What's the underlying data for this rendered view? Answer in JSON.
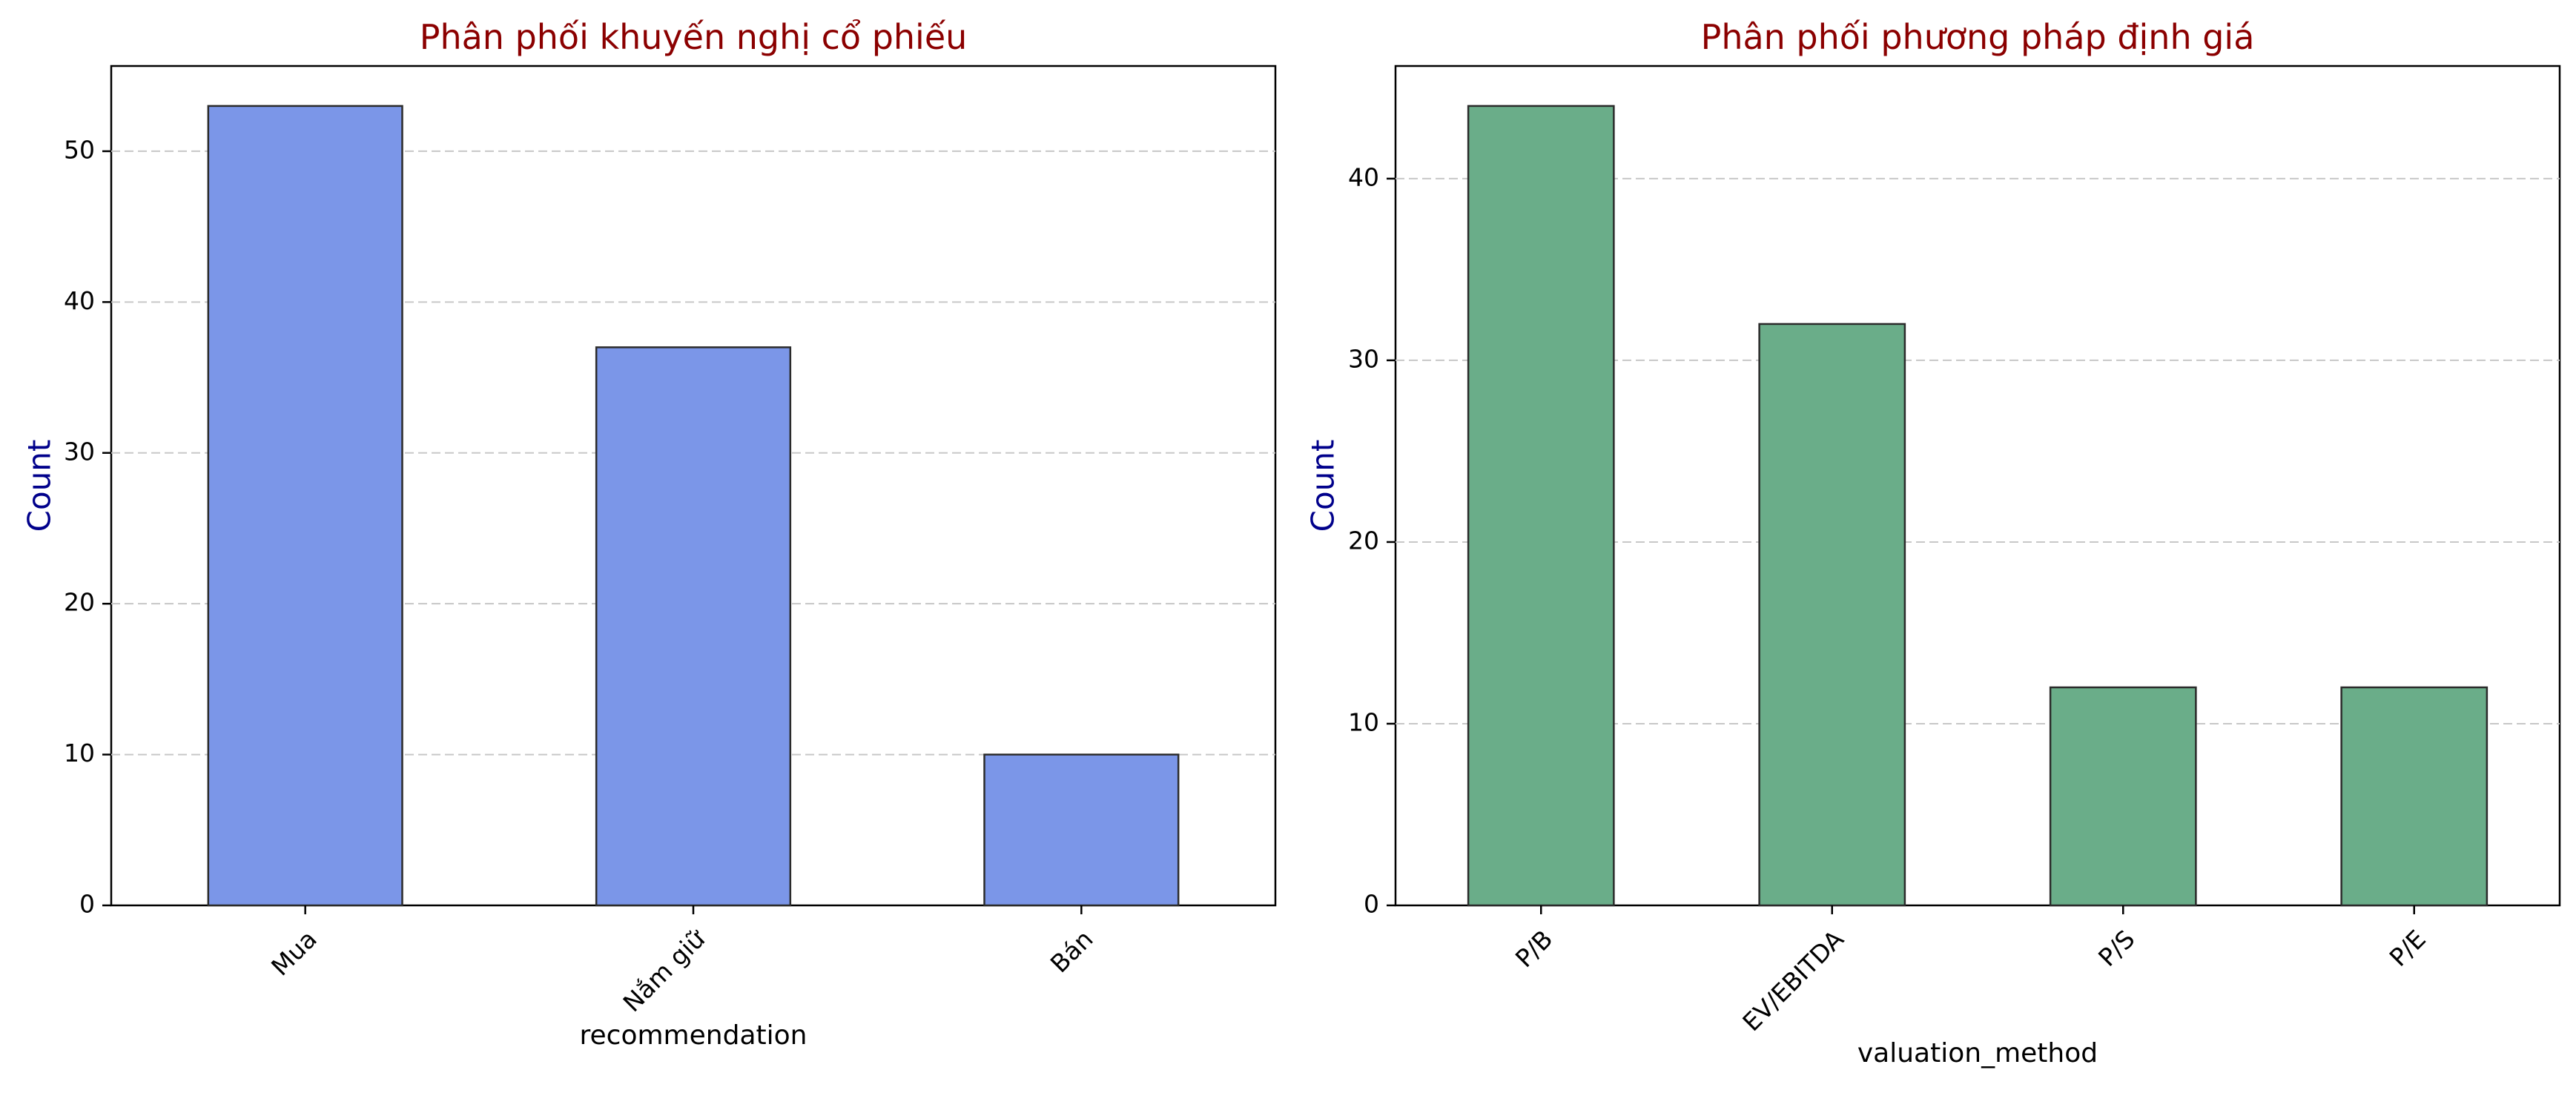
{
  "chart_data": [
    {
      "type": "bar",
      "title": "Phân phối khuyến nghị cổ phiếu",
      "xlabel": "recommendation",
      "ylabel": "Count",
      "categories": [
        "Mua",
        "Nắm giữ",
        "Bán"
      ],
      "values": [
        53,
        37,
        10
      ],
      "ylim": [
        0,
        55.65
      ],
      "yticks": [
        0,
        10,
        20,
        30,
        40,
        50
      ],
      "grid": "y-dashed",
      "bar_color": "#7b96e8",
      "title_color": "#8b0000",
      "ylabel_color": "#00008b"
    },
    {
      "type": "bar",
      "title": "Phân phối phương pháp định giá",
      "xlabel": "valuation_method",
      "ylabel": "Count",
      "categories": [
        "P/B",
        "EV/EBITDA",
        "P/S",
        "P/E"
      ],
      "values": [
        44,
        32,
        12,
        12
      ],
      "ylim": [
        0,
        46.2
      ],
      "yticks": [
        0,
        10,
        20,
        30,
        40
      ],
      "grid": "y-dashed",
      "bar_color": "#6aad89",
      "title_color": "#8b0000",
      "ylabel_color": "#00008b"
    }
  ]
}
